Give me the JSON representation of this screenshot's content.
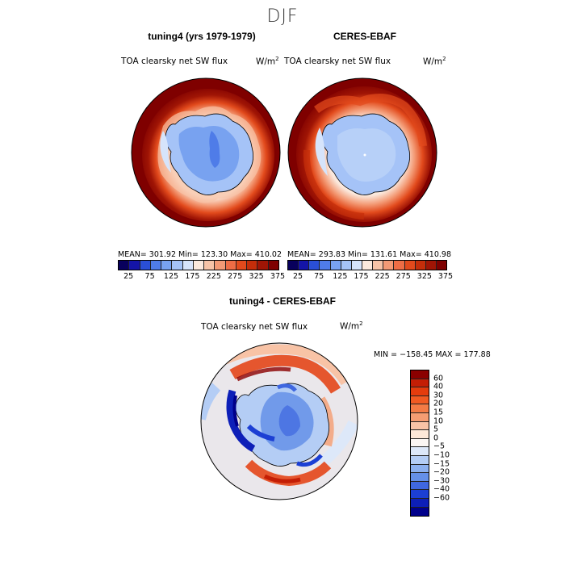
{
  "title": "DJF",
  "panels": [
    {
      "title": "tuning4 (yrs 1979-1979)",
      "variable": "TOA clearsky net SW flux",
      "unit_base": "W/m",
      "unit_exp": "2",
      "stats": "MEAN= 301.92   Min= 123.30   Max= 410.02"
    },
    {
      "title": "CERES-EBAF",
      "variable": "TOA clearsky net SW flux",
      "unit_base": "W/m",
      "unit_exp": "2",
      "stats": "MEAN= 293.83   Min= 131.61   Max= 410.98"
    }
  ],
  "diff_panel": {
    "title": "tuning4 - CERES-EBAF",
    "variable": "TOA clearsky net SW flux",
    "unit_base": "W/m",
    "unit_exp": "2",
    "stats": "MIN = −158.45  MAX = 177.88"
  },
  "colorbar_abs": {
    "tick_labels": [
      "25",
      "75",
      "125",
      "175",
      "225",
      "275",
      "325",
      "375"
    ],
    "colors": [
      "#08005c",
      "#1414a8",
      "#2a4fd6",
      "#4f7ce8",
      "#78a2f0",
      "#a5c3f7",
      "#d6e4fb",
      "#fbe9dd",
      "#f6c3a7",
      "#f39a75",
      "#ee6d45",
      "#e24a1c",
      "#c42e0a",
      "#a01505",
      "#7f0000"
    ]
  },
  "colorbar_diff": {
    "tick_labels": [
      "60",
      "40",
      "30",
      "20",
      "15",
      "10",
      "5",
      "0",
      "−5",
      "−10",
      "−15",
      "−20",
      "−30",
      "−40",
      "−60"
    ],
    "colors": [
      "#8b0000",
      "#c41e05",
      "#e43c0d",
      "#f05a22",
      "#f37b45",
      "#f59d72",
      "#f8c3a6",
      "#fde8d8",
      "#fbf6f3",
      "#dde8f9",
      "#b4cdf5",
      "#8cb0ef",
      "#6590e8",
      "#3f67e0",
      "#1c3fd4",
      "#0d1fb8",
      "#00008b"
    ]
  }
}
